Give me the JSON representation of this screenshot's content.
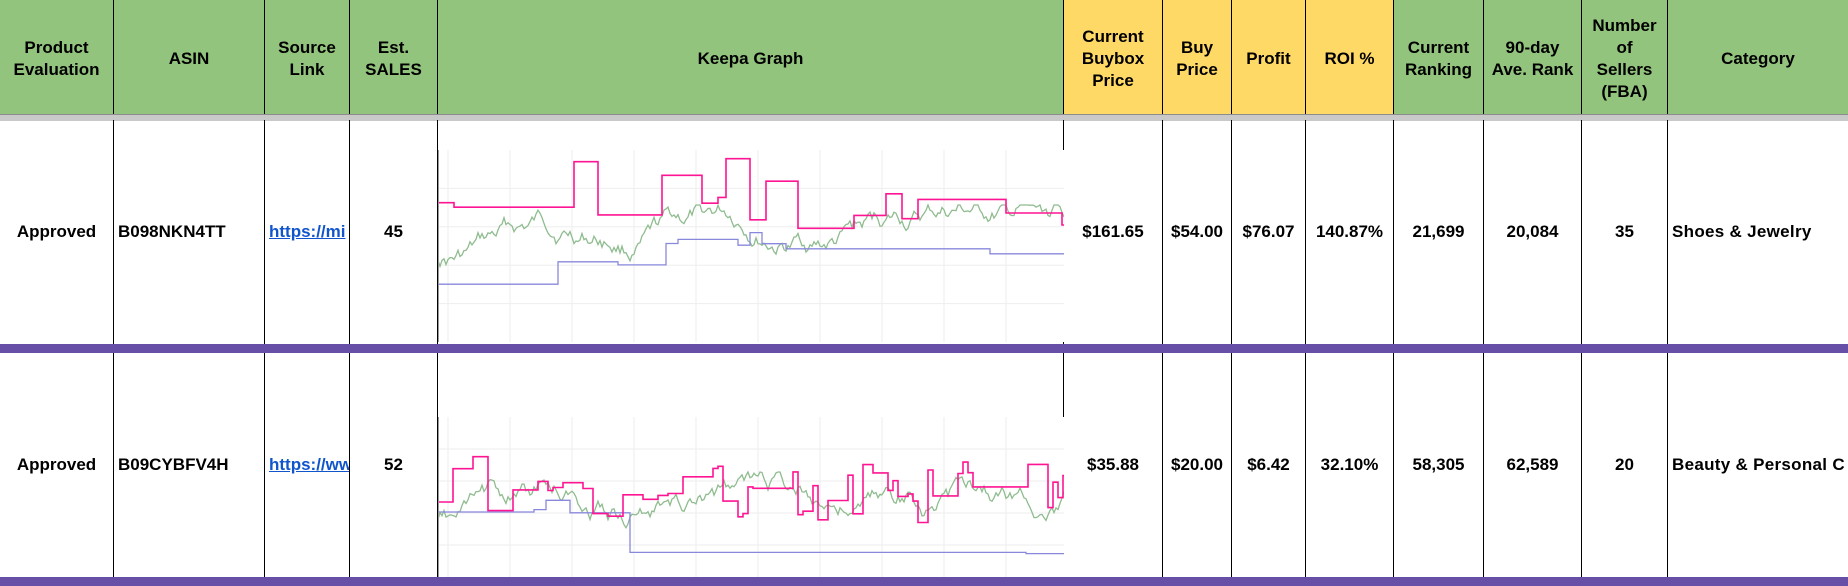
{
  "headers": [
    {
      "key": "evaluation",
      "label": "Product\nEvaluation",
      "color": "green"
    },
    {
      "key": "asin",
      "label": "ASIN",
      "color": "green"
    },
    {
      "key": "source",
      "label": "Source\nLink",
      "color": "green"
    },
    {
      "key": "sales",
      "label": "Est.\nSALES",
      "color": "green"
    },
    {
      "key": "graph",
      "label": "Keepa Graph",
      "color": "green"
    },
    {
      "key": "buybox",
      "label": "Current\nBuybox\nPrice",
      "color": "yellow"
    },
    {
      "key": "buy",
      "label": "Buy\nPrice",
      "color": "yellow"
    },
    {
      "key": "profit",
      "label": "Profit",
      "color": "yellow"
    },
    {
      "key": "roi",
      "label": "ROI %",
      "color": "yellow"
    },
    {
      "key": "ranking",
      "label": "Current\nRanking",
      "color": "green"
    },
    {
      "key": "avgrank",
      "label": "90-day\nAve. Rank",
      "color": "green"
    },
    {
      "key": "sellers",
      "label": "Number\nof\nSellers\n(FBA)",
      "color": "green"
    },
    {
      "key": "category",
      "label": "Category",
      "color": "green"
    }
  ],
  "rows": [
    {
      "evaluation": "Approved",
      "asin": "B098NKN4TT",
      "source": "https://mi",
      "sales": "45",
      "buybox": "$161.65",
      "buy": "$54.00",
      "profit": "$76.07",
      "roi": "140.87%",
      "ranking": "21,699",
      "avgrank": "20,084",
      "sellers": "35",
      "category": "Shoes & Jewelry"
    },
    {
      "evaluation": "Approved",
      "asin": "B09CYBFV4H",
      "source": "https://ww",
      "sales": "52",
      "buybox": "$35.88",
      "buy": "$20.00",
      "profit": "$6.42",
      "roi": "32.10%",
      "ranking": "58,305",
      "avgrank": "62,589",
      "sellers": "20",
      "category": "Beauty & Personal C"
    }
  ],
  "colors": {
    "header_green": "#93c47d",
    "header_yellow": "#ffd966",
    "row_separator": "#674ea7",
    "link": "#1155cc",
    "keepa_price": "#ff1493",
    "keepa_rank": "#8fbc8f",
    "keepa_new": "#8888dd"
  }
}
